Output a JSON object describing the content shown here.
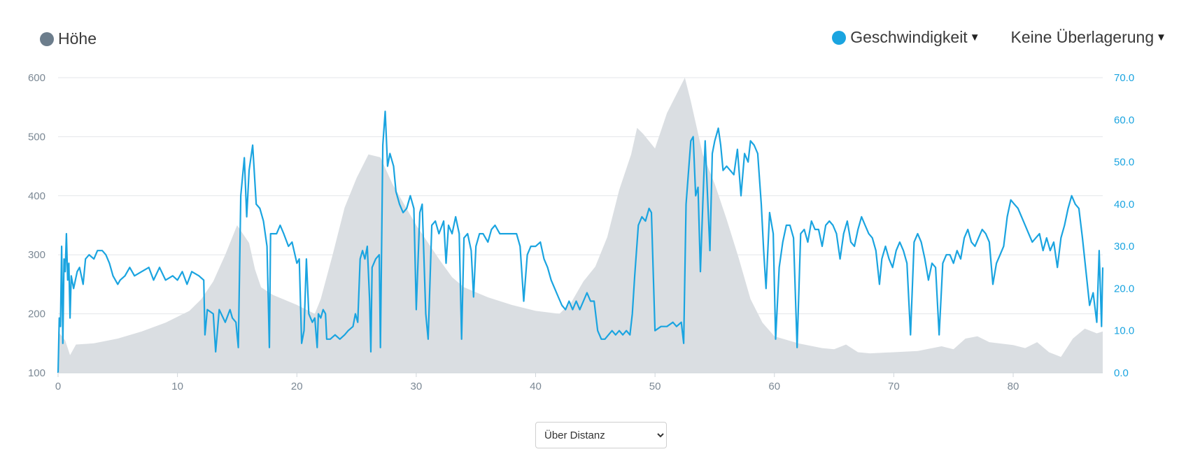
{
  "legend": {
    "left_label": "Höhe",
    "left_color": "#6c7d8c",
    "right_label": "Geschwindigkeit",
    "right_color": "#1aa4e0",
    "overlay_label": "Keine Überlagerung"
  },
  "mode_select": {
    "options": [
      "Über Distanz"
    ],
    "selected": "Über Distanz"
  },
  "chart_data": {
    "type": "area+line",
    "x_ticks": [
      "0",
      "10",
      "20",
      "30",
      "40",
      "50",
      "60",
      "70",
      "80"
    ],
    "y_left_ticks": [
      "100",
      "200",
      "300",
      "400",
      "500",
      "600"
    ],
    "y_right_ticks": [
      "0.0",
      "10.0",
      "20.0",
      "30.0",
      "40.0",
      "50.0",
      "60.0",
      "70.0"
    ],
    "x_range": [
      0,
      87.5
    ],
    "y_left_range": [
      100,
      600
    ],
    "y_right_range": [
      0,
      70
    ],
    "grid": true,
    "elevation_color": "#dadee2",
    "speed_color": "#1aa4e0",
    "elevation": [
      [
        0,
        170
      ],
      [
        0.6,
        155
      ],
      [
        1,
        130
      ],
      [
        1.5,
        148
      ],
      [
        3,
        150
      ],
      [
        5,
        158
      ],
      [
        7,
        170
      ],
      [
        9,
        185
      ],
      [
        11,
        205
      ],
      [
        12,
        225
      ],
      [
        13,
        255
      ],
      [
        14,
        300
      ],
      [
        15,
        350
      ],
      [
        16,
        320
      ],
      [
        16.5,
        275
      ],
      [
        17,
        245
      ],
      [
        18,
        232
      ],
      [
        20,
        215
      ],
      [
        21.5,
        200
      ],
      [
        22,
        225
      ],
      [
        23,
        300
      ],
      [
        24,
        380
      ],
      [
        25,
        430
      ],
      [
        26,
        470
      ],
      [
        27,
        465
      ],
      [
        28,
        420
      ],
      [
        30,
        350
      ],
      [
        31,
        320
      ],
      [
        32,
        290
      ],
      [
        33,
        262
      ],
      [
        34,
        245
      ],
      [
        36,
        228
      ],
      [
        38,
        215
      ],
      [
        40,
        205
      ],
      [
        42,
        200
      ],
      [
        43,
        220
      ],
      [
        44,
        255
      ],
      [
        45,
        280
      ],
      [
        46,
        330
      ],
      [
        47,
        410
      ],
      [
        48,
        470
      ],
      [
        48.5,
        515
      ],
      [
        49,
        505
      ],
      [
        50,
        480
      ],
      [
        51,
        540
      ],
      [
        52,
        580
      ],
      [
        52.5,
        600
      ],
      [
        53,
        560
      ],
      [
        54,
        470
      ],
      [
        55,
        420
      ],
      [
        56,
        360
      ],
      [
        57,
        295
      ],
      [
        58,
        225
      ],
      [
        59,
        185
      ],
      [
        60,
        162
      ],
      [
        62,
        150
      ],
      [
        64,
        142
      ],
      [
        65,
        140
      ],
      [
        66,
        148
      ],
      [
        67,
        135
      ],
      [
        68,
        133
      ],
      [
        70,
        135
      ],
      [
        72,
        137
      ],
      [
        74,
        145
      ],
      [
        75,
        140
      ],
      [
        76,
        158
      ],
      [
        77,
        162
      ],
      [
        78,
        152
      ],
      [
        80,
        147
      ],
      [
        81,
        142
      ],
      [
        82,
        152
      ],
      [
        83,
        135
      ],
      [
        84,
        127
      ],
      [
        85,
        158
      ],
      [
        86,
        175
      ],
      [
        87,
        167
      ],
      [
        87.5,
        170
      ]
    ],
    "speed": [
      [
        0,
        0
      ],
      [
        0.1,
        13
      ],
      [
        0.2,
        11
      ],
      [
        0.3,
        30
      ],
      [
        0.4,
        7
      ],
      [
        0.5,
        27
      ],
      [
        0.6,
        24
      ],
      [
        0.7,
        33
      ],
      [
        0.8,
        22
      ],
      [
        0.9,
        26
      ],
      [
        1,
        13
      ],
      [
        1.1,
        23
      ],
      [
        1.3,
        20
      ],
      [
        1.6,
        24
      ],
      [
        1.8,
        25
      ],
      [
        2.1,
        21
      ],
      [
        2.3,
        27
      ],
      [
        2.6,
        28
      ],
      [
        3,
        27
      ],
      [
        3.3,
        29
      ],
      [
        3.7,
        29
      ],
      [
        4,
        28
      ],
      [
        4.3,
        26
      ],
      [
        4.6,
        23
      ],
      [
        5,
        21
      ],
      [
        5.2,
        22
      ],
      [
        5.6,
        23
      ],
      [
        6,
        25
      ],
      [
        6.4,
        23
      ],
      [
        7,
        24
      ],
      [
        7.6,
        25
      ],
      [
        8,
        22
      ],
      [
        8.5,
        25
      ],
      [
        9,
        22
      ],
      [
        9.6,
        23
      ],
      [
        10,
        22
      ],
      [
        10.4,
        24
      ],
      [
        10.8,
        21
      ],
      [
        11.2,
        24
      ],
      [
        11.8,
        23
      ],
      [
        12.2,
        22
      ],
      [
        12.3,
        9
      ],
      [
        12.5,
        15
      ],
      [
        13,
        14
      ],
      [
        13.2,
        5
      ],
      [
        13.5,
        15
      ],
      [
        14,
        12
      ],
      [
        14.4,
        15
      ],
      [
        14.6,
        13
      ],
      [
        14.9,
        12
      ],
      [
        15.1,
        6
      ],
      [
        15.3,
        42
      ],
      [
        15.6,
        51
      ],
      [
        15.8,
        37
      ],
      [
        16,
        48
      ],
      [
        16.3,
        54
      ],
      [
        16.6,
        40
      ],
      [
        16.9,
        39
      ],
      [
        17.2,
        36
      ],
      [
        17.5,
        30
      ],
      [
        17.7,
        6
      ],
      [
        17.8,
        33
      ],
      [
        18,
        33
      ],
      [
        18.3,
        33
      ],
      [
        18.6,
        35
      ],
      [
        18.9,
        33
      ],
      [
        19.3,
        30
      ],
      [
        19.6,
        31
      ],
      [
        20,
        26
      ],
      [
        20.2,
        27
      ],
      [
        20.4,
        7
      ],
      [
        20.6,
        10
      ],
      [
        20.8,
        27
      ],
      [
        21,
        14
      ],
      [
        21.3,
        12
      ],
      [
        21.5,
        13
      ],
      [
        21.7,
        6
      ],
      [
        21.8,
        14
      ],
      [
        22,
        13
      ],
      [
        22.2,
        15
      ],
      [
        22.4,
        14
      ],
      [
        22.5,
        8
      ],
      [
        22.8,
        8
      ],
      [
        23.2,
        9
      ],
      [
        23.6,
        8
      ],
      [
        24,
        9
      ],
      [
        24.3,
        10
      ],
      [
        24.7,
        11
      ],
      [
        24.9,
        14
      ],
      [
        25.1,
        12
      ],
      [
        25.3,
        27
      ],
      [
        25.5,
        29
      ],
      [
        25.7,
        27
      ],
      [
        25.9,
        30
      ],
      [
        26.1,
        17
      ],
      [
        26.2,
        5
      ],
      [
        26.3,
        25
      ],
      [
        26.6,
        27
      ],
      [
        26.9,
        28
      ],
      [
        27,
        6
      ],
      [
        27.2,
        54
      ],
      [
        27.4,
        62
      ],
      [
        27.6,
        49
      ],
      [
        27.8,
        52
      ],
      [
        28.1,
        49
      ],
      [
        28.3,
        43
      ],
      [
        28.6,
        40
      ],
      [
        28.9,
        38
      ],
      [
        29.2,
        39
      ],
      [
        29.5,
        42
      ],
      [
        29.8,
        39
      ],
      [
        30,
        15
      ],
      [
        30.3,
        38
      ],
      [
        30.5,
        40
      ],
      [
        30.8,
        14
      ],
      [
        31,
        8
      ],
      [
        31.3,
        35
      ],
      [
        31.6,
        36
      ],
      [
        31.9,
        33
      ],
      [
        32.3,
        36
      ],
      [
        32.5,
        26
      ],
      [
        32.7,
        35
      ],
      [
        33,
        33
      ],
      [
        33.3,
        37
      ],
      [
        33.6,
        33
      ],
      [
        33.8,
        8
      ],
      [
        34,
        32
      ],
      [
        34.3,
        33
      ],
      [
        34.6,
        29
      ],
      [
        34.8,
        18
      ],
      [
        35,
        30
      ],
      [
        35.3,
        33
      ],
      [
        35.6,
        33
      ],
      [
        36,
        31
      ],
      [
        36.3,
        34
      ],
      [
        36.6,
        35
      ],
      [
        37,
        33
      ],
      [
        37.4,
        33
      ],
      [
        37.8,
        33
      ],
      [
        38.1,
        33
      ],
      [
        38.4,
        33
      ],
      [
        38.7,
        30
      ],
      [
        39,
        17
      ],
      [
        39.3,
        28
      ],
      [
        39.6,
        30
      ],
      [
        40,
        30
      ],
      [
        40.4,
        31
      ],
      [
        40.7,
        27
      ],
      [
        41,
        25
      ],
      [
        41.3,
        22
      ],
      [
        41.6,
        20
      ],
      [
        41.9,
        18
      ],
      [
        42.2,
        16
      ],
      [
        42.5,
        15
      ],
      [
        42.8,
        17
      ],
      [
        43.1,
        15
      ],
      [
        43.4,
        17
      ],
      [
        43.7,
        15
      ],
      [
        44,
        17
      ],
      [
        44.3,
        19
      ],
      [
        44.6,
        17
      ],
      [
        44.9,
        17
      ],
      [
        45.2,
        10
      ],
      [
        45.5,
        8
      ],
      [
        45.8,
        8
      ],
      [
        46.1,
        9
      ],
      [
        46.4,
        10
      ],
      [
        46.7,
        9
      ],
      [
        47,
        10
      ],
      [
        47.3,
        9
      ],
      [
        47.6,
        10
      ],
      [
        47.9,
        9
      ],
      [
        48.1,
        14
      ],
      [
        48.3,
        23
      ],
      [
        48.6,
        35
      ],
      [
        48.9,
        37
      ],
      [
        49.2,
        36
      ],
      [
        49.5,
        39
      ],
      [
        49.7,
        38
      ],
      [
        50,
        10
      ],
      [
        50.5,
        11
      ],
      [
        51,
        11
      ],
      [
        51.5,
        12
      ],
      [
        51.8,
        11
      ],
      [
        52.2,
        12
      ],
      [
        52.4,
        7
      ],
      [
        52.6,
        40
      ],
      [
        53,
        55
      ],
      [
        53.2,
        56
      ],
      [
        53.4,
        42
      ],
      [
        53.6,
        44
      ],
      [
        53.8,
        24
      ],
      [
        54,
        40
      ],
      [
        54.2,
        55
      ],
      [
        54.4,
        42
      ],
      [
        54.6,
        29
      ],
      [
        54.8,
        52
      ],
      [
        55,
        55
      ],
      [
        55.3,
        58
      ],
      [
        55.5,
        54
      ],
      [
        55.7,
        48
      ],
      [
        56,
        49
      ],
      [
        56.3,
        48
      ],
      [
        56.6,
        47
      ],
      [
        56.9,
        53
      ],
      [
        57.2,
        42
      ],
      [
        57.5,
        52
      ],
      [
        57.8,
        50
      ],
      [
        58,
        55
      ],
      [
        58.3,
        54
      ],
      [
        58.6,
        52
      ],
      [
        58.9,
        40
      ],
      [
        59.1,
        29
      ],
      [
        59.3,
        20
      ],
      [
        59.6,
        38
      ],
      [
        59.9,
        33
      ],
      [
        60.1,
        8
      ],
      [
        60.4,
        25
      ],
      [
        60.7,
        31
      ],
      [
        61,
        35
      ],
      [
        61.3,
        35
      ],
      [
        61.6,
        32
      ],
      [
        61.9,
        6
      ],
      [
        62.2,
        33
      ],
      [
        62.5,
        34
      ],
      [
        62.8,
        31
      ],
      [
        63.1,
        36
      ],
      [
        63.4,
        34
      ],
      [
        63.7,
        34
      ],
      [
        64,
        30
      ],
      [
        64.3,
        35
      ],
      [
        64.6,
        36
      ],
      [
        64.9,
        35
      ],
      [
        65.2,
        33
      ],
      [
        65.5,
        27
      ],
      [
        65.8,
        33
      ],
      [
        66.1,
        36
      ],
      [
        66.4,
        31
      ],
      [
        66.7,
        30
      ],
      [
        67,
        34
      ],
      [
        67.3,
        37
      ],
      [
        67.6,
        35
      ],
      [
        67.9,
        33
      ],
      [
        68.2,
        32
      ],
      [
        68.5,
        29
      ],
      [
        68.8,
        21
      ],
      [
        69,
        27
      ],
      [
        69.3,
        30
      ],
      [
        69.6,
        27
      ],
      [
        69.9,
        25
      ],
      [
        70.2,
        29
      ],
      [
        70.5,
        31
      ],
      [
        70.8,
        29
      ],
      [
        71.1,
        26
      ],
      [
        71.4,
        9
      ],
      [
        71.7,
        31
      ],
      [
        72,
        33
      ],
      [
        72.3,
        31
      ],
      [
        72.6,
        27
      ],
      [
        72.9,
        22
      ],
      [
        73.2,
        26
      ],
      [
        73.5,
        25
      ],
      [
        73.8,
        9
      ],
      [
        74.1,
        26
      ],
      [
        74.4,
        28
      ],
      [
        74.7,
        28
      ],
      [
        75,
        26
      ],
      [
        75.3,
        29
      ],
      [
        75.6,
        27
      ],
      [
        75.9,
        32
      ],
      [
        76.2,
        34
      ],
      [
        76.5,
        31
      ],
      [
        76.8,
        30
      ],
      [
        77.1,
        32
      ],
      [
        77.4,
        34
      ],
      [
        77.7,
        33
      ],
      [
        78,
        31
      ],
      [
        78.3,
        21
      ],
      [
        78.6,
        26
      ],
      [
        78.9,
        28
      ],
      [
        79.2,
        30
      ],
      [
        79.5,
        37
      ],
      [
        79.8,
        41
      ],
      [
        80.1,
        40
      ],
      [
        80.4,
        39
      ],
      [
        80.7,
        37
      ],
      [
        81,
        35
      ],
      [
        81.3,
        33
      ],
      [
        81.6,
        31
      ],
      [
        81.9,
        32
      ],
      [
        82.2,
        33
      ],
      [
        82.5,
        29
      ],
      [
        82.8,
        32
      ],
      [
        83.1,
        29
      ],
      [
        83.4,
        31
      ],
      [
        83.7,
        25
      ],
      [
        84,
        32
      ],
      [
        84.3,
        35
      ],
      [
        84.6,
        39
      ],
      [
        84.9,
        42
      ],
      [
        85.2,
        40
      ],
      [
        85.5,
        39
      ],
      [
        85.8,
        32
      ],
      [
        86.1,
        24
      ],
      [
        86.4,
        16
      ],
      [
        86.7,
        19
      ],
      [
        87,
        12
      ],
      [
        87.2,
        29
      ],
      [
        87.4,
        11
      ],
      [
        87.5,
        25
      ]
    ]
  }
}
